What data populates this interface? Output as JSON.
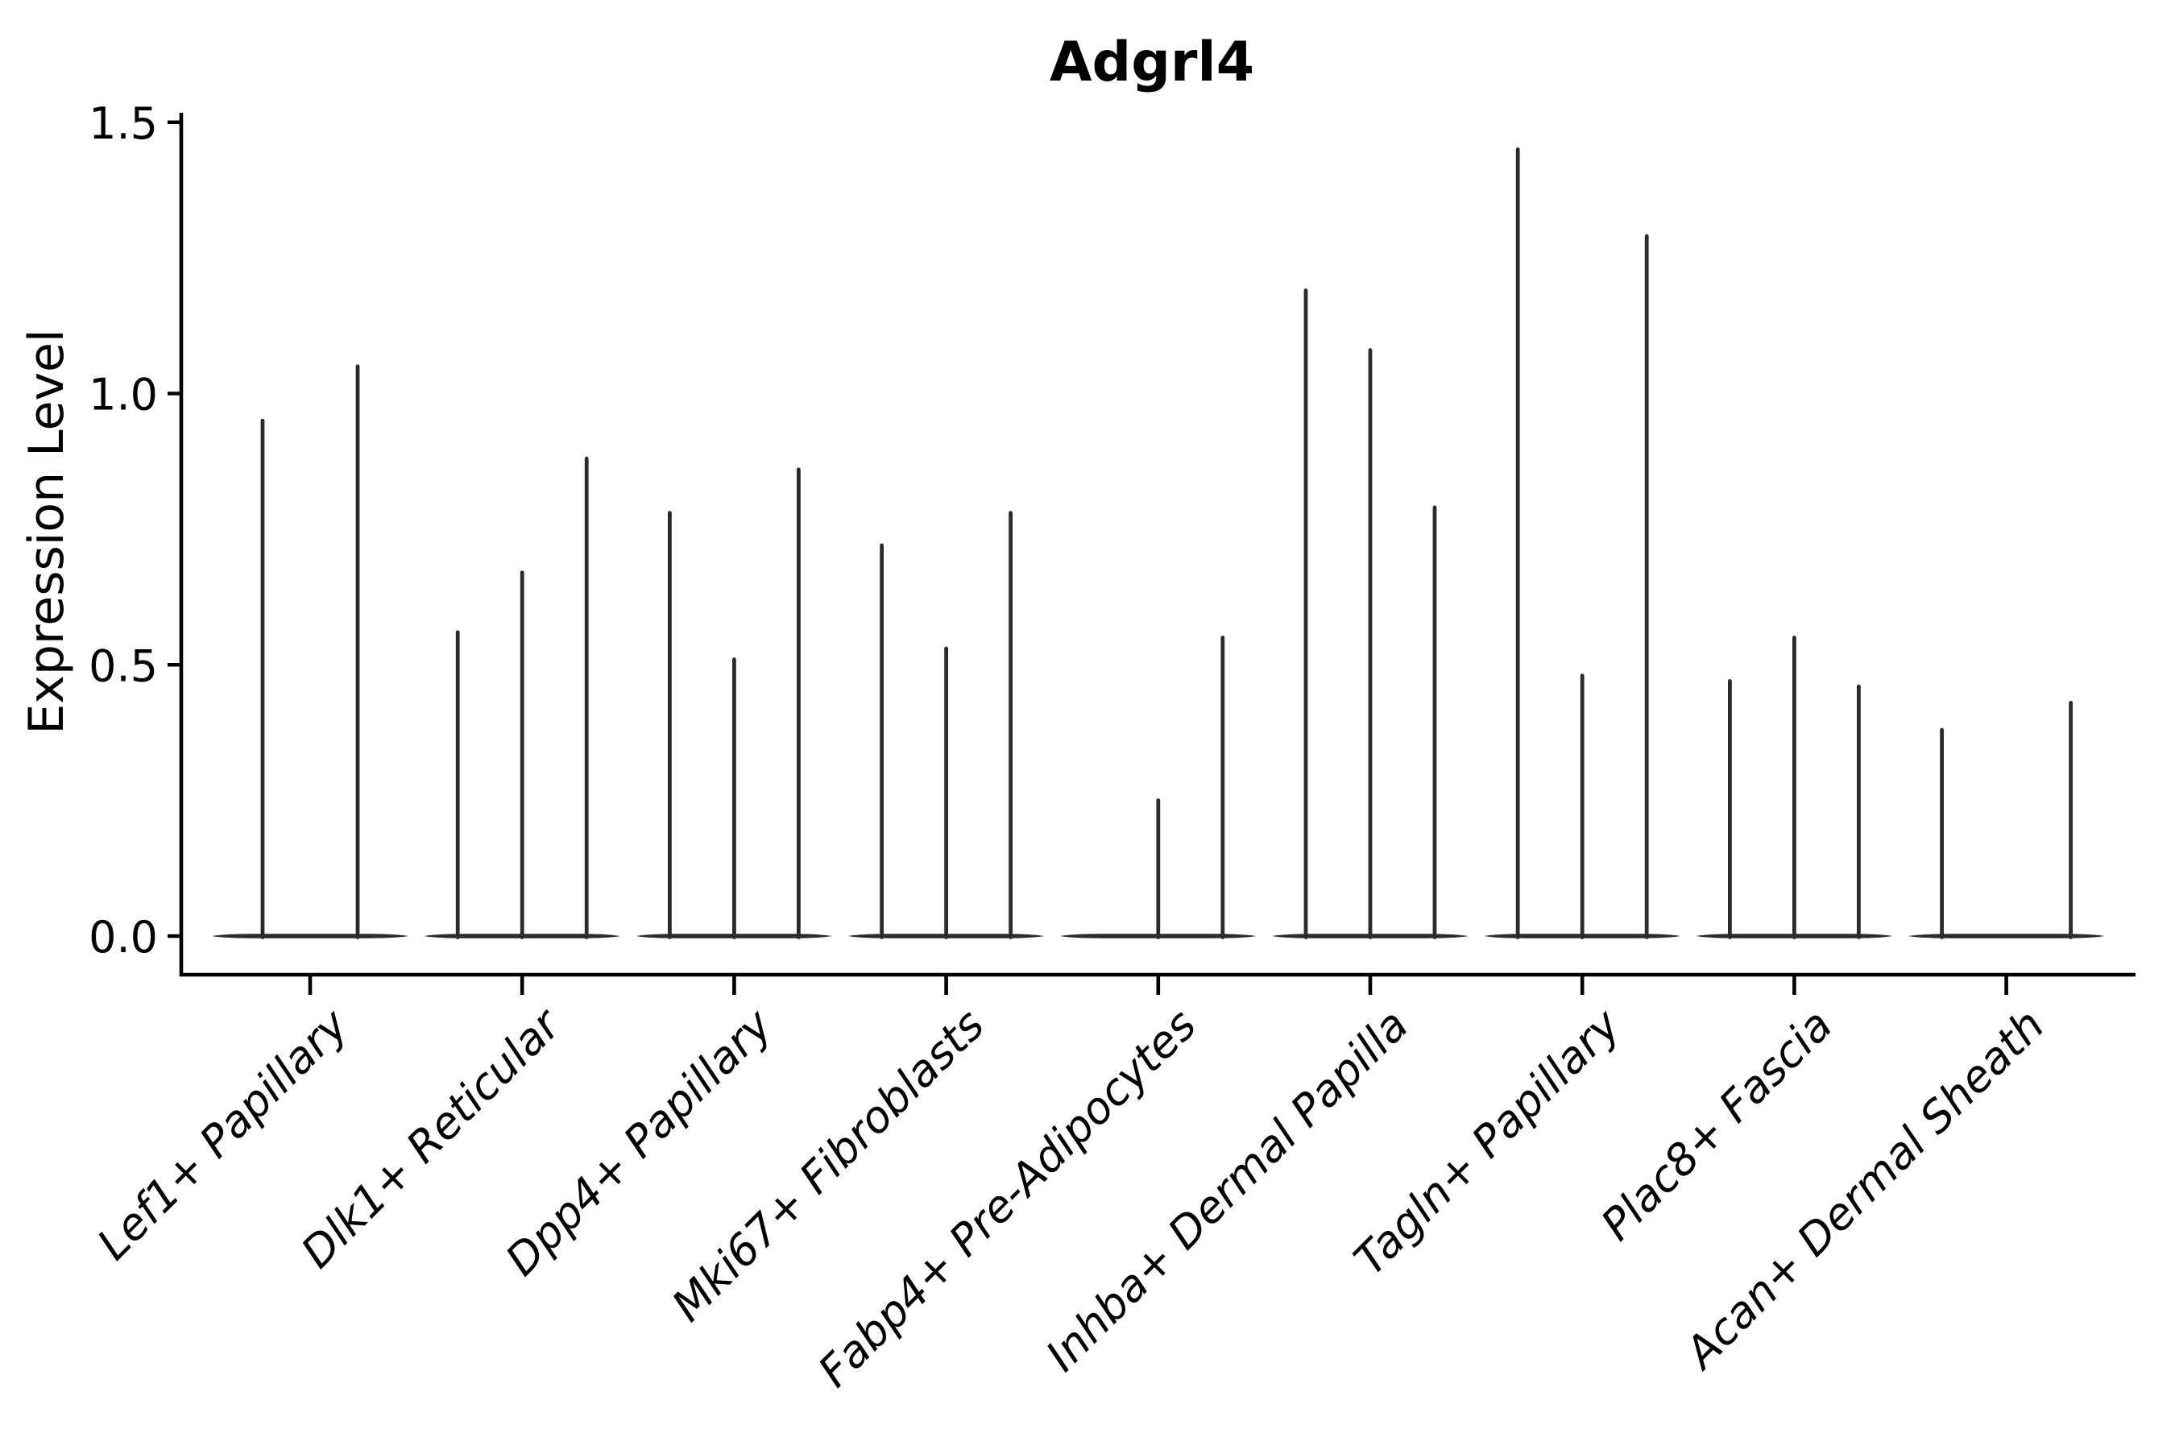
{
  "figure": {
    "title": "Adgrl4",
    "y_axis_label": "Expression Level",
    "background_color": "#ffffff",
    "axis_color": "#000000",
    "violin_color": "#2b2b2b",
    "y_tick_labels": [
      "0.0",
      "0.5",
      "1.0",
      "1.5"
    ]
  },
  "chart_data": {
    "type": "violin",
    "title": "Adgrl4",
    "xlabel": "",
    "ylabel": "Expression Level",
    "ylim": [
      -0.07,
      1.52
    ],
    "yticks": [
      0.0,
      0.5,
      1.0,
      1.5
    ],
    "grid": false,
    "legend": "none",
    "x_tick_rotation_deg": 45,
    "description": "Needle-thin violins: expression is mostly 0 (flat wide base at y=0); each category holds 2-3 thin violins whose needle tips mark the maximum expression level. dx = horizontal offset (px) of each needle from the category center.",
    "categories": [
      "Lef1+ Papillary",
      "Dlk1+ Reticular",
      "Dpp4+ Papillary",
      "Mki67+ Fibroblasts",
      "Fabp4+ Pre-Adipocytes",
      "Inhba+ Dermal Papilla",
      "Tagln+ Papillary",
      "Plac8+ Fascia",
      "Acan+ Dermal Sheath"
    ],
    "violins": [
      {
        "category": "Lef1+ Papillary",
        "needles": [
          {
            "dx": -59,
            "value": 0.95
          },
          {
            "dx": 59,
            "value": 1.05
          }
        ]
      },
      {
        "category": "Dlk1+ Reticular",
        "needles": [
          {
            "dx": -80,
            "value": 0.56
          },
          {
            "dx": 0,
            "value": 0.67
          },
          {
            "dx": 80,
            "value": 0.88
          }
        ]
      },
      {
        "category": "Dpp4+ Papillary",
        "needles": [
          {
            "dx": -80,
            "value": 0.78
          },
          {
            "dx": 0,
            "value": 0.51
          },
          {
            "dx": 80,
            "value": 0.86
          }
        ]
      },
      {
        "category": "Mki67+ Fibroblasts",
        "needles": [
          {
            "dx": -80,
            "value": 0.72
          },
          {
            "dx": 0,
            "value": 0.53
          },
          {
            "dx": 80,
            "value": 0.78
          }
        ]
      },
      {
        "category": "Fabp4+ Pre-Adipocytes",
        "needles": [
          {
            "dx": 0,
            "value": 0.25
          },
          {
            "dx": 80,
            "value": 0.55
          }
        ]
      },
      {
        "category": "Inhba+ Dermal Papilla",
        "needles": [
          {
            "dx": -80,
            "value": 1.19
          },
          {
            "dx": 0,
            "value": 1.08
          },
          {
            "dx": 80,
            "value": 0.79
          }
        ]
      },
      {
        "category": "Tagln+ Papillary",
        "needles": [
          {
            "dx": -80,
            "value": 1.45
          },
          {
            "dx": 0,
            "value": 0.48
          },
          {
            "dx": 80,
            "value": 1.29
          }
        ]
      },
      {
        "category": "Plac8+ Fascia",
        "needles": [
          {
            "dx": -80,
            "value": 0.47
          },
          {
            "dx": 0,
            "value": 0.55
          },
          {
            "dx": 80,
            "value": 0.46
          }
        ]
      },
      {
        "category": "Acan+ Dermal Sheath",
        "needles": [
          {
            "dx": -80,
            "value": 0.38
          },
          {
            "dx": 80,
            "value": 0.43
          }
        ]
      }
    ]
  }
}
